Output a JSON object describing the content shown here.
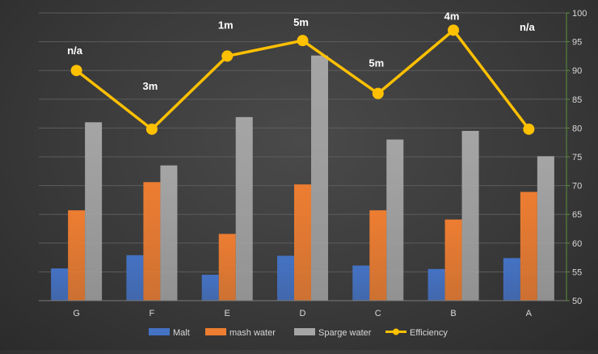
{
  "chart_data": {
    "type": "bar",
    "categories": [
      "G",
      "F",
      "E",
      "D",
      "C",
      "B",
      "A"
    ],
    "ylim": [
      50,
      100
    ],
    "y_ticks": [
      50,
      55,
      60,
      65,
      70,
      75,
      80,
      85,
      90,
      95,
      100
    ],
    "y_axis_side": "right",
    "grid": true,
    "legend_position": "bottom",
    "series": [
      {
        "name": "Malt",
        "type": "bar",
        "color": "#4472c4",
        "values": [
          55.6,
          57.9,
          54.5,
          57.8,
          56.1,
          55.5,
          57.4
        ]
      },
      {
        "name": "mash water",
        "type": "bar",
        "color": "#ed7d31",
        "values": [
          65.7,
          70.6,
          61.6,
          70.2,
          65.7,
          64.1,
          68.9
        ]
      },
      {
        "name": "Sparge water",
        "type": "bar",
        "color": "#a5a5a5",
        "values": [
          81.0,
          73.5,
          81.9,
          92.6,
          78.0,
          79.5,
          75.1
        ]
      },
      {
        "name": "Efficiency",
        "type": "line",
        "color": "#ffc000",
        "values": [
          90.0,
          79.8,
          92.5,
          95.2,
          86.0,
          97.0,
          79.8
        ],
        "data_labels": [
          "n/a",
          "3m",
          "1m",
          "5m",
          "5m",
          "4m",
          "n/a"
        ]
      }
    ]
  }
}
